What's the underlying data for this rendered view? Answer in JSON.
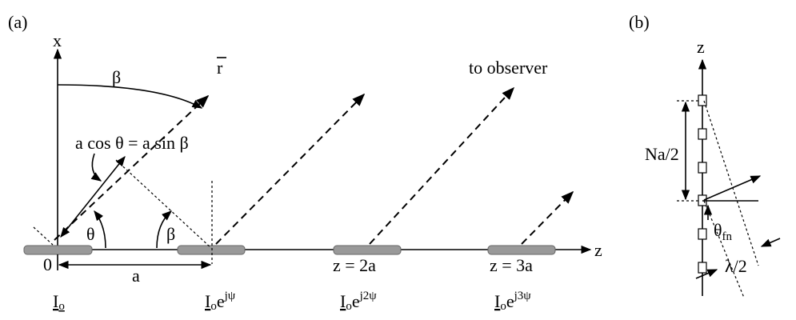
{
  "panel_a": {
    "label": "(a)",
    "x_axis": "x",
    "z_axis": "z",
    "beta_top": "β",
    "r_vector": "r",
    "to_observer": "to observer",
    "path_difference": "a cos θ = a sin β",
    "theta": "θ",
    "beta": "β",
    "origin": "0",
    "spacing": "a",
    "positions": [
      "z = 2a",
      "z = 3a"
    ],
    "currents": [
      {
        "base": "I",
        "sub": "o"
      },
      {
        "base": "I",
        "sub": "o",
        "exp": "e",
        "sup": "jψ"
      },
      {
        "base": "I",
        "sub": "o",
        "exp": "e",
        "sup": "j2ψ"
      },
      {
        "base": "I",
        "sub": "o",
        "exp": "e",
        "sup": "j3ψ"
      }
    ]
  },
  "panel_b": {
    "label": "(b)",
    "z_axis": "z",
    "half_length": "Na/2",
    "null_angle": {
      "base": "θ",
      "sub": "fn"
    },
    "half_wavelength": "λ/2"
  }
}
